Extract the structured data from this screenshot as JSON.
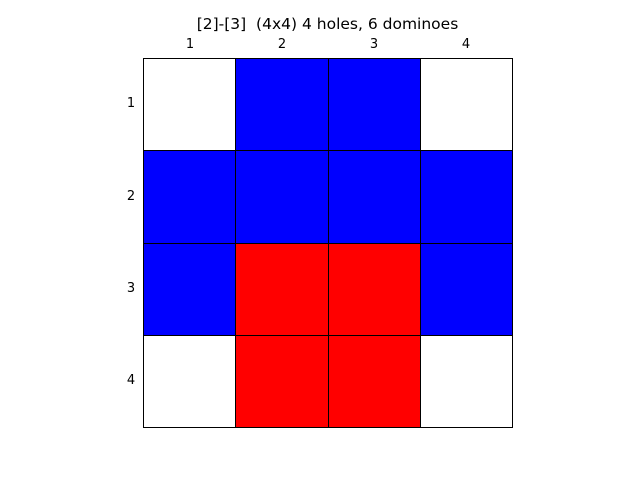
{
  "title": "[2]-[3]  (4x4) 4 holes, 6 dominoes",
  "columns": [
    "1",
    "2",
    "3",
    "4"
  ],
  "rows": [
    "1",
    "2",
    "3",
    "4"
  ],
  "colors": {
    "hole": "#ffffff",
    "blue": "#0000ff",
    "red": "#ff0000",
    "grid": "#000000"
  },
  "grid": [
    [
      "hole",
      "blue",
      "blue",
      "hole"
    ],
    [
      "blue",
      "blue",
      "blue",
      "blue"
    ],
    [
      "blue",
      "red",
      "red",
      "blue"
    ],
    [
      "hole",
      "red",
      "red",
      "hole"
    ]
  ]
}
